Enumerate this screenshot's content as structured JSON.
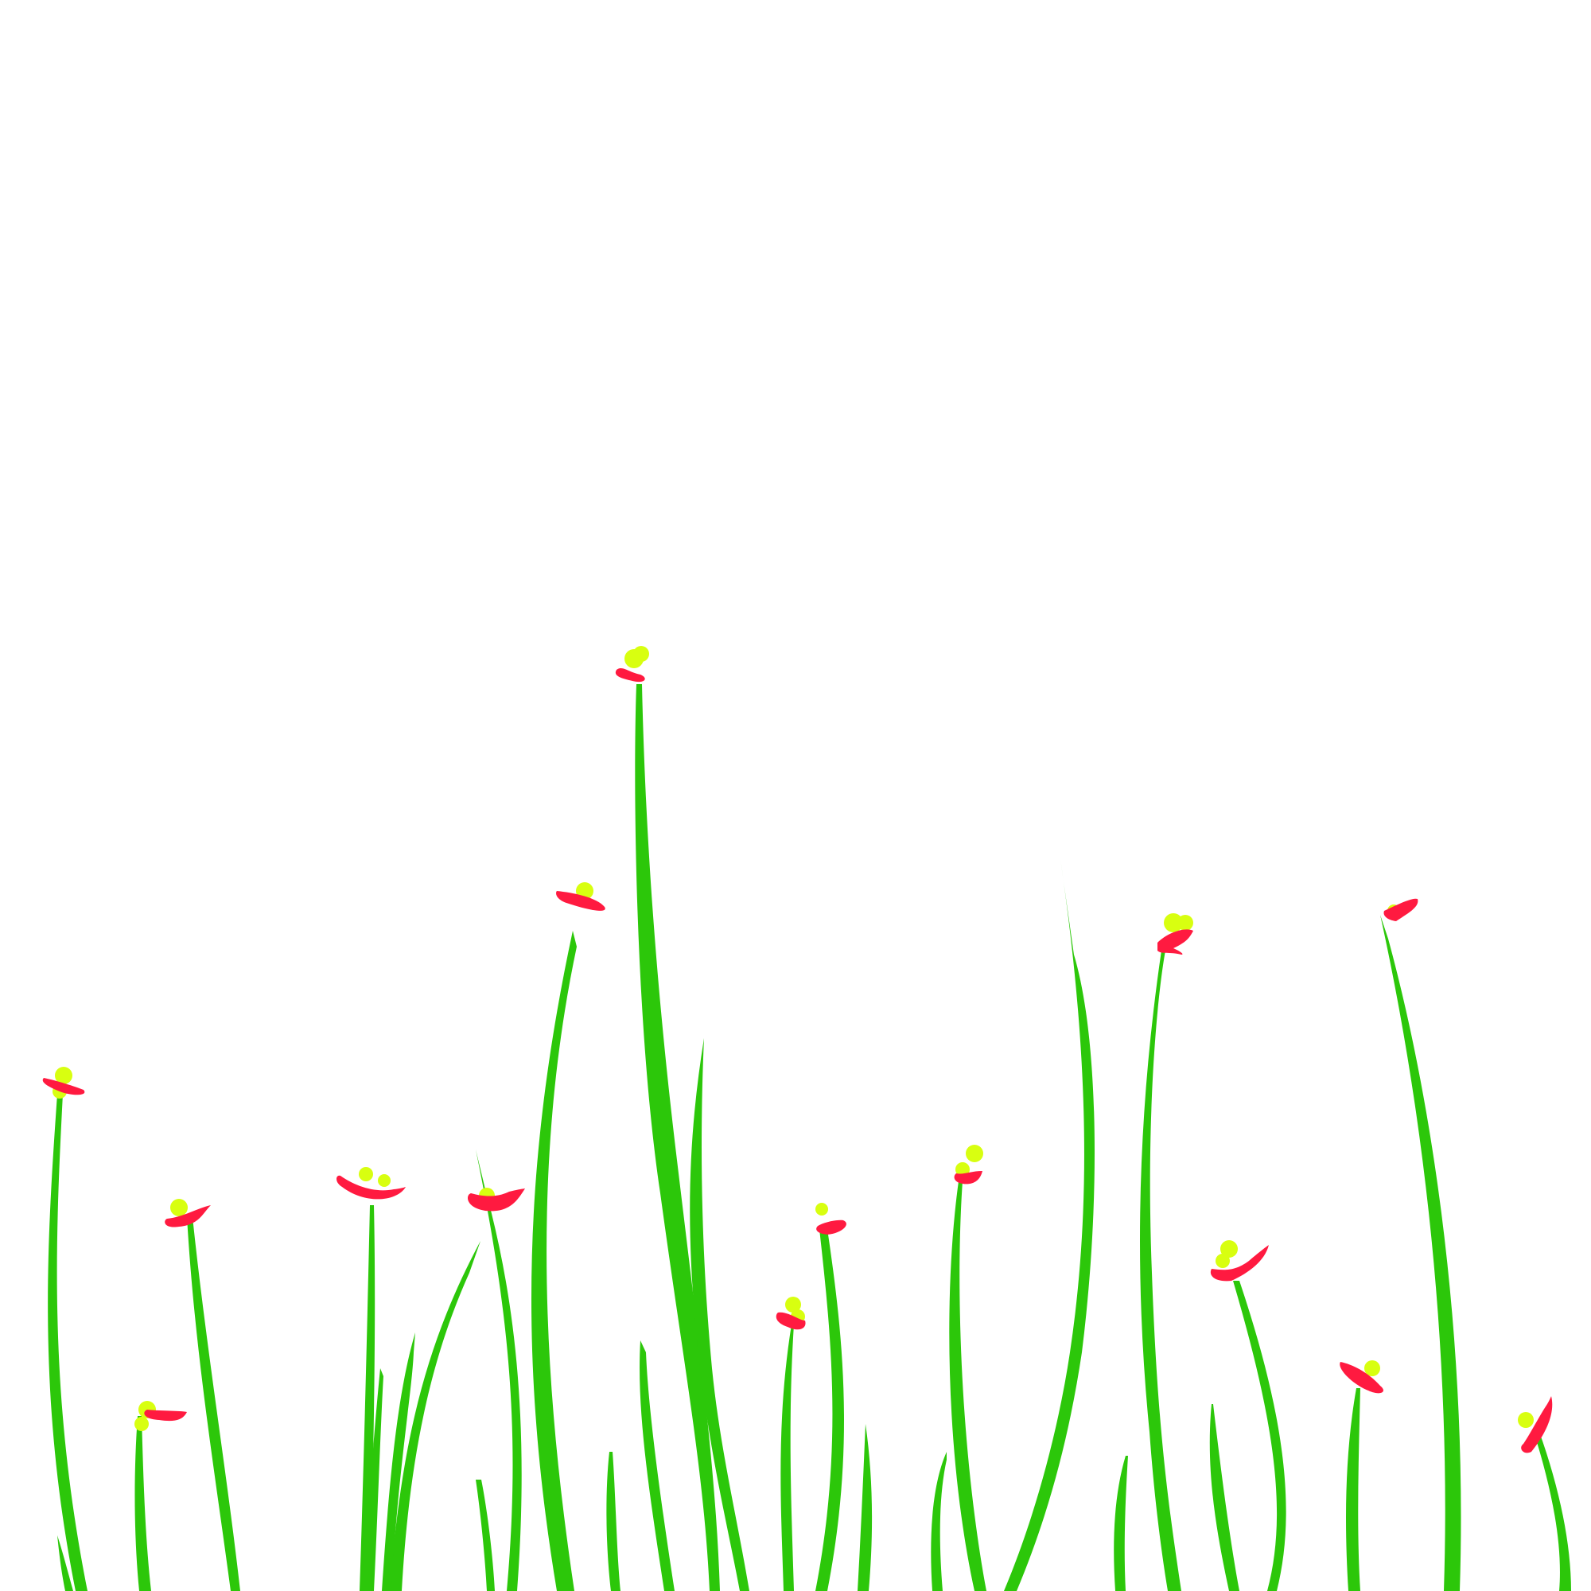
{
  "scene": {
    "description_tag": "",
    "colors": {
      "background": "#ffffff",
      "grass": "#2cc70a",
      "petal": "#ff1a40",
      "center": "#d8ff10"
    }
  }
}
